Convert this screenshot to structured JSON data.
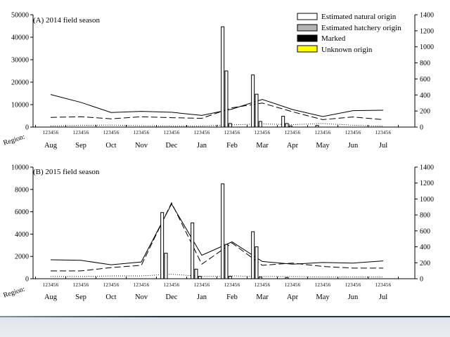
{
  "chart_data": [
    {
      "panel": "A",
      "type": "bar+line",
      "title": "(A) 2014 field season",
      "region_label": "Region:",
      "region_ticks": "123456",
      "months": [
        "Aug",
        "Sep",
        "Oct",
        "Nov",
        "Dec",
        "Jan",
        "Feb",
        "Mar",
        "Apr",
        "May",
        "Jun",
        "Jul"
      ],
      "left_axis": {
        "ylim": [
          0,
          50000
        ],
        "ticks": [
          0,
          10000,
          20000,
          30000,
          40000,
          50000
        ],
        "tick_labels": [
          "0",
          "10000",
          "20000",
          "30000",
          "40000",
          "50000"
        ]
      },
      "right_axis": {
        "ylim": [
          0,
          1400
        ],
        "ticks": [
          0,
          200,
          400,
          600,
          800,
          1000,
          1200,
          1400
        ],
        "tick_labels": [
          "0",
          "200",
          "400",
          "600",
          "800",
          "1000",
          "1200",
          "1400"
        ]
      },
      "bars_axis": "right",
      "bars": [
        {
          "month": 6,
          "region": 1,
          "natural": 1250
        },
        {
          "month": 6,
          "region": 2,
          "natural": 700
        },
        {
          "month": 6,
          "region": 3,
          "natural": 45
        },
        {
          "month": 7,
          "region": 1,
          "natural": 650
        },
        {
          "month": 7,
          "region": 2,
          "natural": 410
        },
        {
          "month": 7,
          "region": 3,
          "natural": 70
        },
        {
          "month": 8,
          "region": 1,
          "natural": 135
        },
        {
          "month": 8,
          "region": 2,
          "natural": 45
        },
        {
          "month": 8,
          "region": 3,
          "natural": 15
        },
        {
          "month": 9,
          "region": 2,
          "natural": 20
        }
      ],
      "lines_axis": "left",
      "lines": [
        {
          "style": "solid",
          "values": [
            14500,
            11000,
            6500,
            7000,
            6600,
            5200,
            8000,
            12300,
            7800,
            4700,
            7300,
            7500
          ]
        },
        {
          "style": "dashed",
          "values": [
            4300,
            4600,
            3700,
            4600,
            4200,
            3900,
            8600,
            10700,
            6800,
            3300,
            4500,
            3300
          ]
        },
        {
          "style": "dotted",
          "values": [
            500,
            750,
            900,
            600,
            500,
            500,
            1000,
            1400,
            1100,
            1600,
            800,
            400
          ]
        }
      ]
    },
    {
      "panel": "B",
      "type": "bar+line",
      "title": "(B) 2015 field season",
      "region_label": "Region:",
      "region_ticks": "123456",
      "months": [
        "Aug",
        "Sep",
        "Oct",
        "Nov",
        "Dec",
        "Jan",
        "Feb",
        "Mar",
        "Apr",
        "May",
        "Jun",
        "Jul"
      ],
      "left_axis": {
        "ylim": [
          0,
          10000
        ],
        "ticks": [
          0,
          2000,
          4000,
          6000,
          8000,
          10000
        ],
        "tick_labels": [
          "0",
          "2000",
          "4000",
          "6000",
          "8000",
          "10000"
        ]
      },
      "right_axis": {
        "ylim": [
          0,
          1400
        ],
        "ticks": [
          0,
          200,
          400,
          600,
          800,
          1000,
          1200,
          1400
        ],
        "tick_labels": [
          "0",
          "200",
          "400",
          "600",
          "800",
          "1000",
          "1200",
          "1400"
        ]
      },
      "bars_axis": "right",
      "bars": [
        {
          "month": 4,
          "region": 1,
          "natural": 830
        },
        {
          "month": 4,
          "region": 2,
          "natural": 320
        },
        {
          "month": 5,
          "region": 1,
          "natural": 700
        },
        {
          "month": 5,
          "region": 2,
          "natural": 120
        },
        {
          "month": 5,
          "region": 3,
          "natural": 30
        },
        {
          "month": 6,
          "region": 1,
          "natural": 1190
        },
        {
          "month": 6,
          "region": 2,
          "natural": 430
        },
        {
          "month": 6,
          "region": 3,
          "natural": 30
        },
        {
          "month": 7,
          "region": 1,
          "natural": 590
        },
        {
          "month": 7,
          "region": 2,
          "natural": 400
        },
        {
          "month": 7,
          "region": 3,
          "natural": 20
        },
        {
          "month": 8,
          "region": 2,
          "natural": 15
        }
      ],
      "lines_axis": "left",
      "lines": [
        {
          "style": "solid",
          "values": [
            1700,
            1650,
            1250,
            1500,
            6700,
            2100,
            3300,
            1550,
            1300,
            1450,
            1400,
            1600
          ]
        },
        {
          "style": "dashed",
          "values": [
            700,
            700,
            1000,
            1200,
            6800,
            1300,
            3200,
            1200,
            1400,
            1100,
            950,
            950
          ]
        },
        {
          "style": "dotted",
          "values": [
            200,
            200,
            250,
            250,
            400,
            200,
            250,
            200,
            200,
            150,
            150,
            150
          ]
        }
      ]
    }
  ],
  "legend": [
    {
      "label": "Estimated natural origin",
      "color": "#ffffff"
    },
    {
      "label": "Estimated hatchery origin",
      "color": "#b3b3b3"
    },
    {
      "label": "Marked",
      "color": "#000000"
    },
    {
      "label": "Unknown origin",
      "color": "#ffff00"
    }
  ]
}
